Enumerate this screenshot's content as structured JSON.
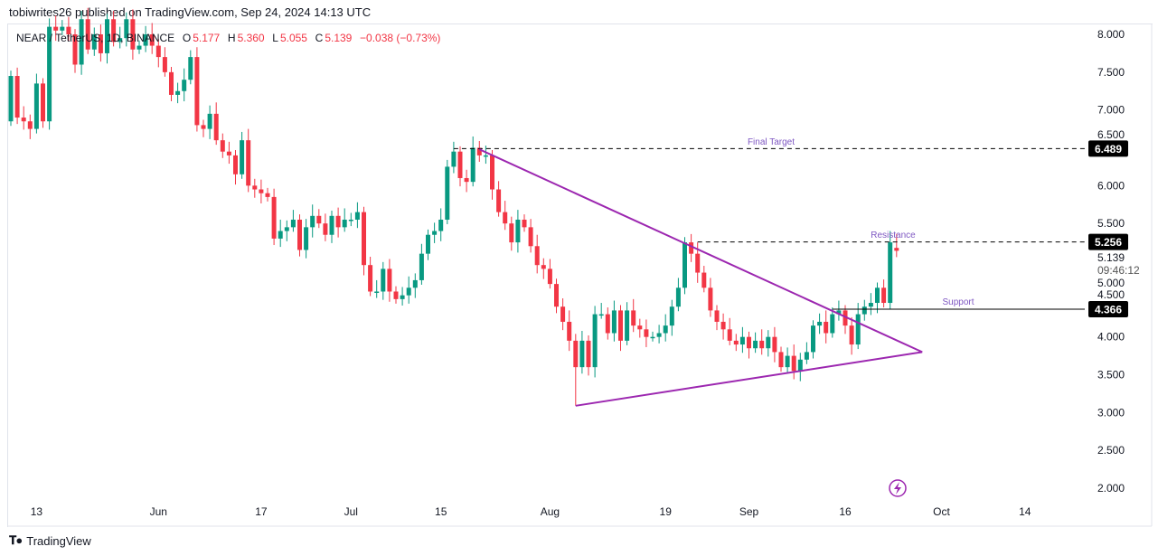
{
  "header": {
    "published": "tobiwrites26 published on TradingView.com, Sep 24, 2024 14:13 UTC"
  },
  "legend": {
    "symbol": "NEAR / TetherUS, 1D, BINANCE",
    "o_label": "O",
    "o": "5.177",
    "h_label": "H",
    "h": "5.360",
    "l_label": "L",
    "l": "5.055",
    "c_label": "C",
    "c": "5.139",
    "change": "−0.038 (−0.73%)"
  },
  "annotations": {
    "final_target": "Final Target",
    "resistance": "Resistance",
    "support": "Support"
  },
  "price_axis": {
    "ticks": [
      "8.000",
      "7.500",
      "7.000",
      "6.500",
      "6.000",
      "5.500",
      "5.000",
      "4.500",
      "4.000",
      "3.500",
      "3.000",
      "2.500",
      "2.000"
    ],
    "badges": {
      "final_target": "6.489",
      "resistance": "5.256",
      "support": "4.366"
    },
    "last_price": "5.139",
    "countdown": "09:46:12"
  },
  "footer": {
    "brand": "TradingView"
  },
  "colors": {
    "up": "#089981",
    "down": "#f23645",
    "triangle": "#9c27b0",
    "label": "#7e57c2",
    "badge_bg": "#000000"
  },
  "chart_data": {
    "type": "candlestick",
    "interval": "1D",
    "first_date": "2024-05-09",
    "first_open": 6.85,
    "close": [
      7.45,
      6.9,
      6.85,
      6.75,
      7.35,
      6.85,
      8.1,
      8.05,
      8.1,
      8.0,
      7.6,
      8.2,
      7.8,
      8.0,
      7.75,
      8.2,
      7.9,
      7.95,
      8.2,
      7.8,
      7.85,
      8.0,
      7.85,
      7.7,
      7.5,
      7.2,
      7.25,
      7.4,
      7.7,
      6.8,
      6.75,
      6.95,
      6.6,
      6.45,
      6.4,
      6.15,
      6.6,
      6.0,
      5.95,
      5.9,
      5.85,
      5.3,
      5.4,
      5.45,
      5.55,
      5.15,
      5.45,
      5.6,
      5.5,
      5.35,
      5.6,
      5.45,
      5.55,
      5.55,
      5.65,
      4.95,
      4.6,
      4.6,
      4.9,
      4.6,
      4.5,
      4.55,
      4.65,
      4.75,
      5.1,
      5.35,
      5.4,
      5.55,
      6.25,
      6.45,
      6.1,
      6.05,
      6.5,
      6.4,
      6.4,
      5.95,
      5.65,
      5.5,
      5.25,
      5.55,
      5.45,
      5.2,
      4.95,
      4.9,
      4.7,
      4.4,
      4.2,
      3.95,
      3.6,
      3.95,
      3.6,
      4.3,
      4.3,
      4.05,
      4.35,
      3.95,
      4.35,
      4.15,
      4.1,
      4.0,
      4.0,
      4.05,
      4.15,
      4.4,
      4.65,
      5.25,
      5.1,
      4.85,
      4.65,
      4.35,
      4.2,
      4.1,
      3.95,
      3.9,
      4.0,
      3.85,
      3.95,
      3.85,
      4.0,
      3.8,
      3.6,
      3.75,
      3.55,
      3.7,
      3.8,
      4.15,
      4.2,
      4.05,
      4.3,
      4.35,
      4.15,
      3.9,
      4.3,
      4.4,
      4.45,
      4.65,
      4.45,
      5.25,
      5.139
    ],
    "last_candle": {
      "open": 5.177,
      "high": 5.36,
      "low": 5.055,
      "close": 5.139
    },
    "x_ticks": [
      {
        "label": "13",
        "date": "2024-05-13"
      },
      {
        "label": "Jun",
        "date": "2024-06-01"
      },
      {
        "label": "17",
        "date": "2024-06-17"
      },
      {
        "label": "Jul",
        "date": "2024-07-01"
      },
      {
        "label": "15",
        "date": "2024-07-15"
      },
      {
        "label": "Aug",
        "date": "2024-08-01"
      },
      {
        "label": "19",
        "date": "2024-08-19"
      },
      {
        "label": "Sep",
        "date": "2024-09-01"
      },
      {
        "label": "16",
        "date": "2024-09-16"
      },
      {
        "label": "Oct",
        "date": "2024-10-01"
      },
      {
        "label": "14",
        "date": "2024-10-14"
      }
    ],
    "ylim": [
      1.87,
      8.13
    ],
    "levels": [
      {
        "name": "Final Target",
        "price": 6.489,
        "from_date": "2024-07-17",
        "style": "dashed"
      },
      {
        "name": "Resistance",
        "price": 5.256,
        "from_date": "2024-08-24",
        "style": "dashed"
      },
      {
        "name": "Support",
        "price": 4.366,
        "from_date": "2024-09-14",
        "style": "solid"
      }
    ],
    "triangle": {
      "upper": [
        {
          "date": "2024-07-21",
          "price": 6.48
        },
        {
          "date": "2024-09-28",
          "price": 3.8
        }
      ],
      "lower": [
        {
          "date": "2024-08-05",
          "price": 3.09
        },
        {
          "date": "2024-09-28",
          "price": 3.8
        }
      ]
    }
  }
}
